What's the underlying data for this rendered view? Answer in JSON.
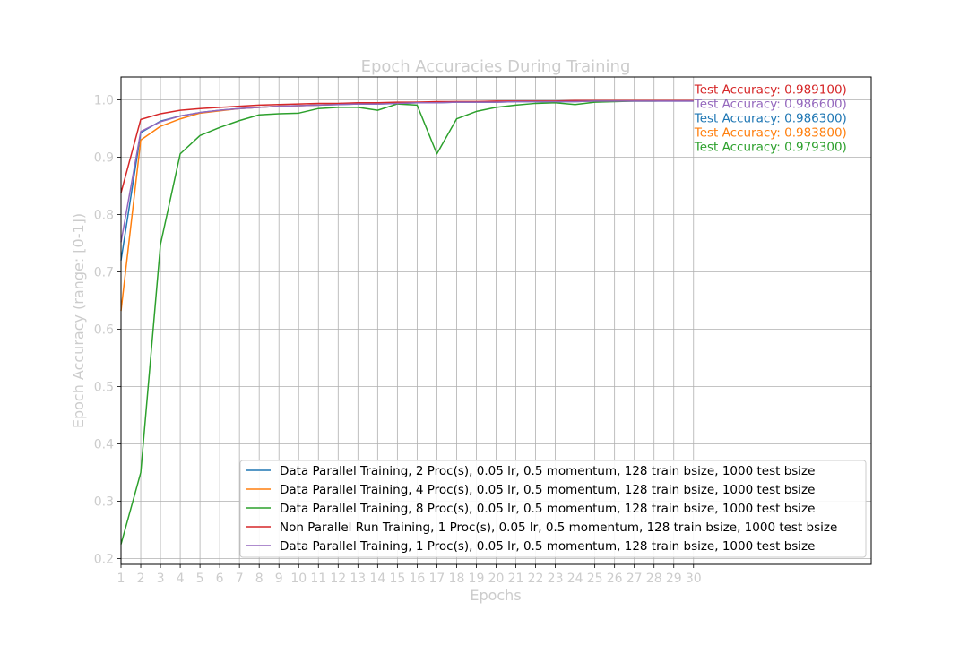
{
  "chart_data": {
    "type": "line",
    "title": "Epoch Accuracies During Training",
    "xlabel": "Epochs",
    "ylabel": "Epoch Accuracy (range: [0-1])",
    "xlim": [
      1,
      39
    ],
    "ylim": [
      0.19,
      1.04
    ],
    "grid": true,
    "legend_position": "lower-right",
    "x": [
      1,
      2,
      3,
      4,
      5,
      6,
      7,
      8,
      9,
      10,
      11,
      12,
      13,
      14,
      15,
      16,
      17,
      18,
      19,
      20,
      21,
      22,
      23,
      24,
      25,
      26,
      27,
      28,
      29,
      30
    ],
    "xticks": [
      "1",
      "2",
      "3",
      "4",
      "5",
      "6",
      "7",
      "8",
      "9",
      "10",
      "11",
      "12",
      "13",
      "14",
      "15",
      "16",
      "17",
      "18",
      "19",
      "20",
      "21",
      "22",
      "23",
      "24",
      "25",
      "26",
      "27",
      "28",
      "29",
      "30"
    ],
    "yticks": [
      "0.2",
      "0.3",
      "0.4",
      "0.5",
      "0.6",
      "0.7",
      "0.8",
      "0.9",
      "1.0"
    ],
    "series": [
      {
        "name": "Data Parallel Training, 2 Proc(s), 0.05 lr, 0.5 momentum, 128 train bsize, 1000 test bsize",
        "color": "#1f77b4",
        "values": [
          0.72,
          0.943,
          0.963,
          0.972,
          0.978,
          0.982,
          0.985,
          0.987,
          0.989,
          0.99,
          0.991,
          0.992,
          0.993,
          0.993,
          0.994,
          0.995,
          0.995,
          0.996,
          0.996,
          0.996,
          0.997,
          0.997,
          0.997,
          0.997,
          0.998,
          0.998,
          0.998,
          0.998,
          0.998,
          0.998
        ]
      },
      {
        "name": "Data Parallel Training, 4 Proc(s), 0.05 lr, 0.5 momentum, 128 train bsize, 1000 test bsize",
        "color": "#ff7f0e",
        "values": [
          0.632,
          0.93,
          0.954,
          0.967,
          0.977,
          0.981,
          0.985,
          0.987,
          0.989,
          0.99,
          0.991,
          0.993,
          0.994,
          0.995,
          0.995,
          0.996,
          0.996,
          0.997,
          0.997,
          0.997,
          0.998,
          0.998,
          0.998,
          0.998,
          0.998,
          0.999,
          0.999,
          0.999,
          0.999,
          0.999
        ]
      },
      {
        "name": "Data Parallel Training, 8 Proc(s), 0.05 lr, 0.5 momentum, 128 train bsize, 1000 test bsize",
        "color": "#2ca02c",
        "values": [
          0.225,
          0.35,
          0.748,
          0.906,
          0.938,
          0.952,
          0.964,
          0.974,
          0.976,
          0.977,
          0.985,
          0.987,
          0.987,
          0.982,
          0.993,
          0.991,
          0.906,
          0.967,
          0.98,
          0.987,
          0.991,
          0.994,
          0.995,
          0.992,
          0.996,
          0.997,
          0.998,
          0.998,
          0.999,
          0.999
        ]
      },
      {
        "name": "Non Parallel Run Training, 1 Proc(s), 0.05 lr, 0.5 momentum, 128 train bsize, 1000 test bsize",
        "color": "#d62728",
        "values": [
          0.838,
          0.966,
          0.976,
          0.982,
          0.985,
          0.987,
          0.989,
          0.991,
          0.992,
          0.993,
          0.994,
          0.994,
          0.995,
          0.995,
          0.996,
          0.996,
          0.997,
          0.997,
          0.997,
          0.998,
          0.998,
          0.998,
          0.998,
          0.999,
          0.999,
          0.999,
          0.999,
          0.999,
          0.999,
          0.999
        ]
      },
      {
        "name": "Data Parallel Training, 1 Proc(s), 0.05 lr, 0.5 momentum, 128 train bsize, 1000 test bsize",
        "color": "#9467bd",
        "values": [
          0.752,
          0.945,
          0.962,
          0.972,
          0.978,
          0.982,
          0.985,
          0.987,
          0.989,
          0.99,
          0.991,
          0.992,
          0.993,
          0.993,
          0.994,
          0.995,
          0.995,
          0.996,
          0.996,
          0.996,
          0.997,
          0.997,
          0.997,
          0.997,
          0.998,
          0.998,
          0.998,
          0.998,
          0.998,
          0.998
        ]
      }
    ],
    "annotations": [
      {
        "text": "Test Accuracy: 0.989100)",
        "color": "#d62728"
      },
      {
        "text": "Test Accuracy: 0.986600)",
        "color": "#9467bd"
      },
      {
        "text": "Test Accuracy: 0.986300)",
        "color": "#1f77b4"
      },
      {
        "text": "Test Accuracy: 0.983800)",
        "color": "#ff7f0e"
      },
      {
        "text": "Test Accuracy: 0.979300)",
        "color": "#2ca02c"
      }
    ]
  }
}
